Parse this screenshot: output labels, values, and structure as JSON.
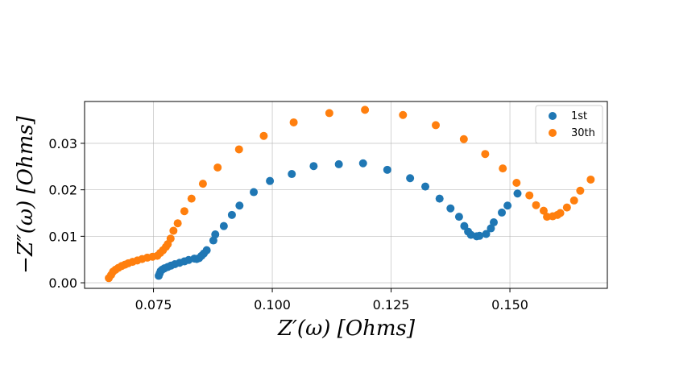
{
  "chart_data": {
    "type": "scatter",
    "xlabel": "Z′(ω) [Ohms]",
    "ylabel": "−Z″(ω) [Ohms]",
    "xlim": [
      0.0605,
      0.1705
    ],
    "ylim": [
      -0.0012,
      0.039
    ],
    "xticks": [
      0.075,
      0.1,
      0.125,
      0.15
    ],
    "xtick_labels": [
      "0.075",
      "0.100",
      "0.125",
      "0.150"
    ],
    "yticks": [
      0.0,
      0.01,
      0.02,
      0.03
    ],
    "ytick_labels": [
      "0.00",
      "0.01",
      "0.02",
      "0.03"
    ],
    "grid": true,
    "legend_position": "top-right",
    "series": [
      {
        "name": "1st",
        "color": "#1f77b4",
        "points": [
          [
            0.0761,
            0.0015
          ],
          [
            0.0763,
            0.002
          ],
          [
            0.0765,
            0.0025
          ],
          [
            0.0768,
            0.0028
          ],
          [
            0.0773,
            0.0031
          ],
          [
            0.078,
            0.0034
          ],
          [
            0.0787,
            0.0037
          ],
          [
            0.0795,
            0.004
          ],
          [
            0.0805,
            0.0043
          ],
          [
            0.0815,
            0.0046
          ],
          [
            0.0824,
            0.0049
          ],
          [
            0.0836,
            0.0052
          ],
          [
            0.0841,
            0.0051
          ],
          [
            0.0846,
            0.0053
          ],
          [
            0.0851,
            0.0058
          ],
          [
            0.0856,
            0.0063
          ],
          [
            0.0862,
            0.007
          ],
          [
            0.0876,
            0.0091
          ],
          [
            0.088,
            0.0104
          ],
          [
            0.0898,
            0.0122
          ],
          [
            0.0915,
            0.0146
          ],
          [
            0.0931,
            0.0166
          ],
          [
            0.0961,
            0.0195
          ],
          [
            0.0995,
            0.0219
          ],
          [
            0.1041,
            0.0234
          ],
          [
            0.1087,
            0.0251
          ],
          [
            0.114,
            0.0255
          ],
          [
            0.1191,
            0.0257
          ],
          [
            0.1242,
            0.0243
          ],
          [
            0.129,
            0.0225
          ],
          [
            0.1322,
            0.0207
          ],
          [
            0.1352,
            0.0181
          ],
          [
            0.1375,
            0.016
          ],
          [
            0.1393,
            0.0142
          ],
          [
            0.1404,
            0.0122
          ],
          [
            0.1412,
            0.011
          ],
          [
            0.1418,
            0.0103
          ],
          [
            0.143,
            0.01
          ],
          [
            0.1436,
            0.0101
          ],
          [
            0.145,
            0.0105
          ],
          [
            0.146,
            0.0117
          ],
          [
            0.1466,
            0.013
          ],
          [
            0.1483,
            0.0151
          ],
          [
            0.1495,
            0.0166
          ],
          [
            0.1516,
            0.0192
          ]
        ]
      },
      {
        "name": "30th",
        "color": "#ff7f0e",
        "points": [
          [
            0.0656,
            0.001
          ],
          [
            0.0661,
            0.0017
          ],
          [
            0.0665,
            0.0024
          ],
          [
            0.067,
            0.0028
          ],
          [
            0.0676,
            0.0032
          ],
          [
            0.0683,
            0.0036
          ],
          [
            0.069,
            0.0039
          ],
          [
            0.0697,
            0.0042
          ],
          [
            0.0706,
            0.0045
          ],
          [
            0.0716,
            0.0048
          ],
          [
            0.0726,
            0.0051
          ],
          [
            0.0737,
            0.0054
          ],
          [
            0.0748,
            0.0056
          ],
          [
            0.0758,
            0.0058
          ],
          [
            0.0764,
            0.0064
          ],
          [
            0.077,
            0.007
          ],
          [
            0.0776,
            0.0077
          ],
          [
            0.078,
            0.0083
          ],
          [
            0.0786,
            0.0095
          ],
          [
            0.0792,
            0.0112
          ],
          [
            0.0801,
            0.0128
          ],
          [
            0.0815,
            0.0154
          ],
          [
            0.083,
            0.0181
          ],
          [
            0.0854,
            0.0213
          ],
          [
            0.0885,
            0.0248
          ],
          [
            0.093,
            0.0287
          ],
          [
            0.0982,
            0.0316
          ],
          [
            0.1045,
            0.0345
          ],
          [
            0.112,
            0.0365
          ],
          [
            0.1195,
            0.0372
          ],
          [
            0.1275,
            0.0361
          ],
          [
            0.1344,
            0.0339
          ],
          [
            0.1403,
            0.0309
          ],
          [
            0.1448,
            0.0277
          ],
          [
            0.1485,
            0.0246
          ],
          [
            0.1514,
            0.0215
          ],
          [
            0.1541,
            0.0188
          ],
          [
            0.1555,
            0.0167
          ],
          [
            0.1571,
            0.0155
          ],
          [
            0.1578,
            0.0142
          ],
          [
            0.159,
            0.0143
          ],
          [
            0.16,
            0.0146
          ],
          [
            0.1606,
            0.015
          ],
          [
            0.162,
            0.0162
          ],
          [
            0.1635,
            0.0177
          ],
          [
            0.1648,
            0.0198
          ],
          [
            0.167,
            0.0222
          ]
        ]
      }
    ]
  }
}
